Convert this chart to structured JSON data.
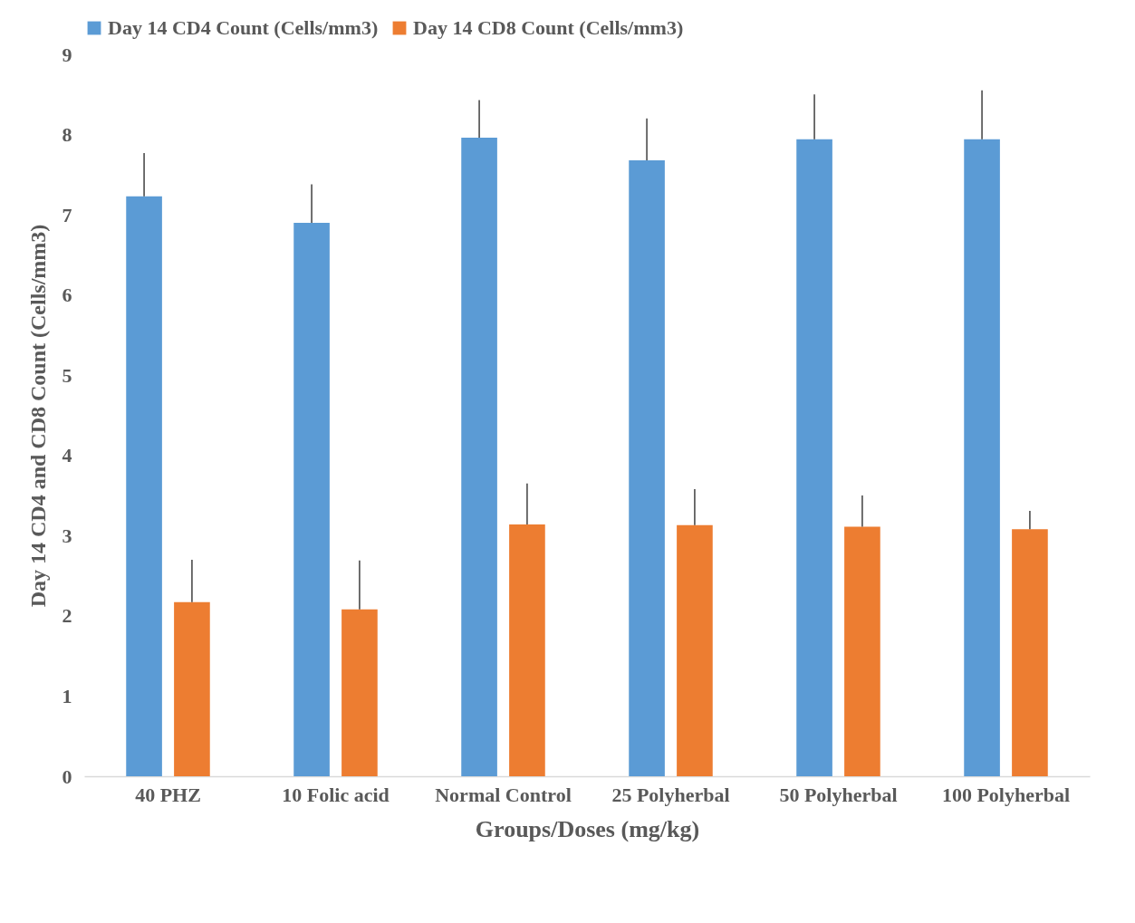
{
  "chart_data": {
    "type": "bar",
    "xlabel": "Groups/Doses (mg/kg)",
    "ylabel": "Day 14 CD4 and CD8 Count (Cells/mm3)",
    "categories": [
      "40 PHZ",
      "10 Folic acid",
      "Normal Control",
      "25 Polyherbal",
      "50 Polyherbal",
      "100 Polyherbal"
    ],
    "series": [
      {
        "name": "Day 14 CD4 Count (Cells/mm3)",
        "color": "#5b9bd5",
        "values": [
          7.23,
          6.9,
          7.96,
          7.68,
          7.94,
          7.94
        ],
        "errors": [
          [
            7.23,
            7.77
          ],
          [
            6.9,
            7.38
          ],
          [
            7.96,
            8.43
          ],
          [
            7.68,
            8.2
          ],
          [
            7.94,
            8.5
          ],
          [
            7.94,
            8.55
          ]
        ]
      },
      {
        "name": "Day 14 CD8 Count (Cells/mm3)",
        "color": "#ed7d31",
        "values": [
          2.17,
          2.08,
          3.14,
          3.13,
          3.11,
          3.08
        ],
        "errors": [
          [
            2.17,
            2.7
          ],
          [
            2.08,
            2.69
          ],
          [
            3.14,
            3.65
          ],
          [
            3.13,
            3.58
          ],
          [
            3.11,
            3.5
          ],
          [
            3.08,
            3.31
          ]
        ]
      }
    ],
    "ylim": [
      0,
      9
    ],
    "yticks": [
      0,
      1,
      2,
      3,
      4,
      5,
      6,
      7,
      8,
      9
    ],
    "legend": "top"
  }
}
